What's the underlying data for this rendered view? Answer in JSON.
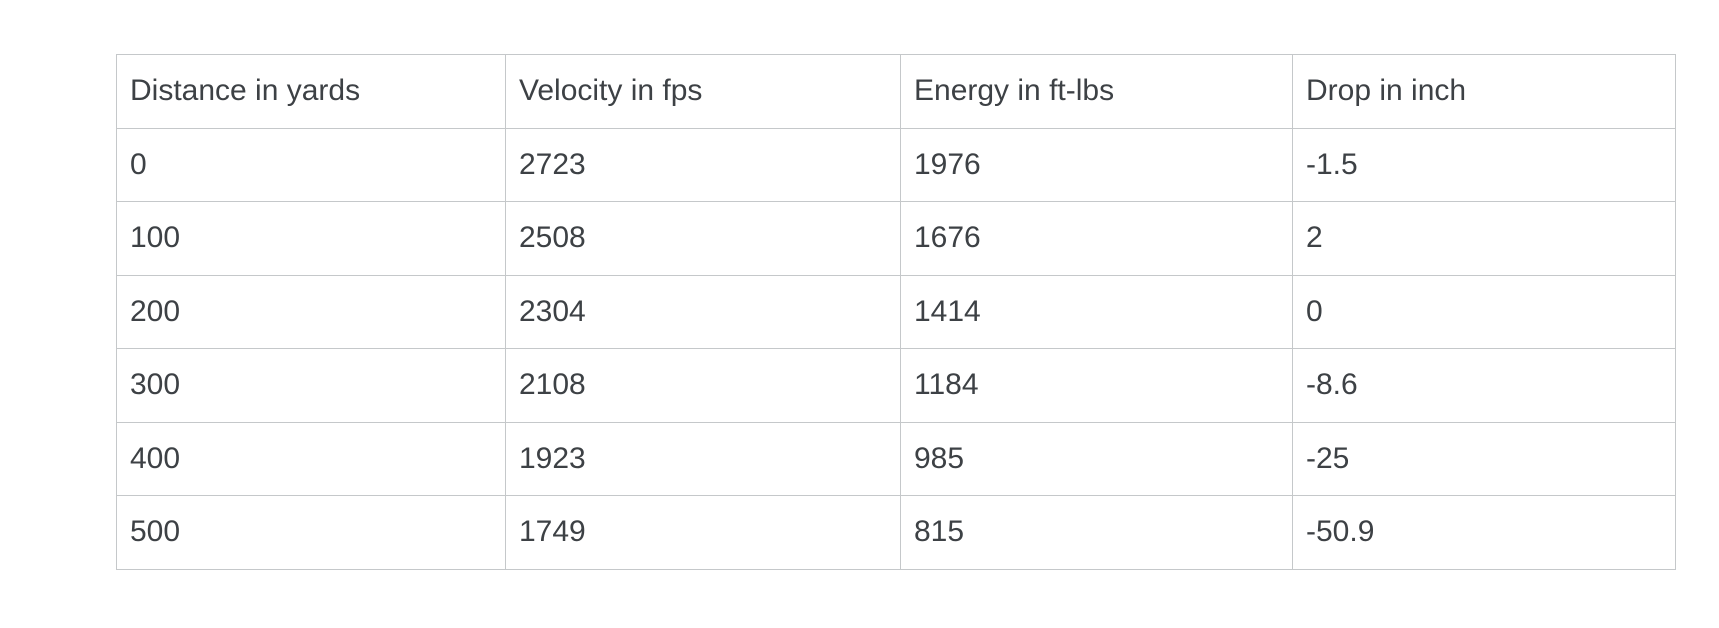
{
  "table": {
    "columns": [
      "Distance in yards",
      "Velocity in fps",
      "Energy in ft-lbs",
      "Drop in inch"
    ],
    "rows": [
      [
        "0",
        "2723",
        "1976",
        "-1.5"
      ],
      [
        "100",
        "2508",
        "1676",
        "2"
      ],
      [
        "200",
        "2304",
        "1414",
        "0"
      ],
      [
        "300",
        "2108",
        "1184",
        "-8.6"
      ],
      [
        "400",
        "1923",
        "985",
        "-25"
      ],
      [
        "500",
        "1749",
        "815",
        "-50.9"
      ]
    ]
  },
  "chart_data": {
    "type": "table",
    "title": "",
    "columns": [
      "Distance in yards",
      "Velocity in fps",
      "Energy in ft-lbs",
      "Drop in inch"
    ],
    "categories": [
      0,
      100,
      200,
      300,
      400,
      500
    ],
    "series": [
      {
        "name": "Velocity in fps",
        "values": [
          2723,
          2508,
          2304,
          2108,
          1923,
          1749
        ]
      },
      {
        "name": "Energy in ft-lbs",
        "values": [
          1976,
          1676,
          1414,
          1184,
          985,
          815
        ]
      },
      {
        "name": "Drop in inch",
        "values": [
          -1.5,
          2,
          0,
          -8.6,
          -25,
          -50.9
        ]
      }
    ]
  },
  "colors": {
    "background": "#ffffff",
    "border": "#c5c8ca",
    "text": "#3d4145"
  }
}
